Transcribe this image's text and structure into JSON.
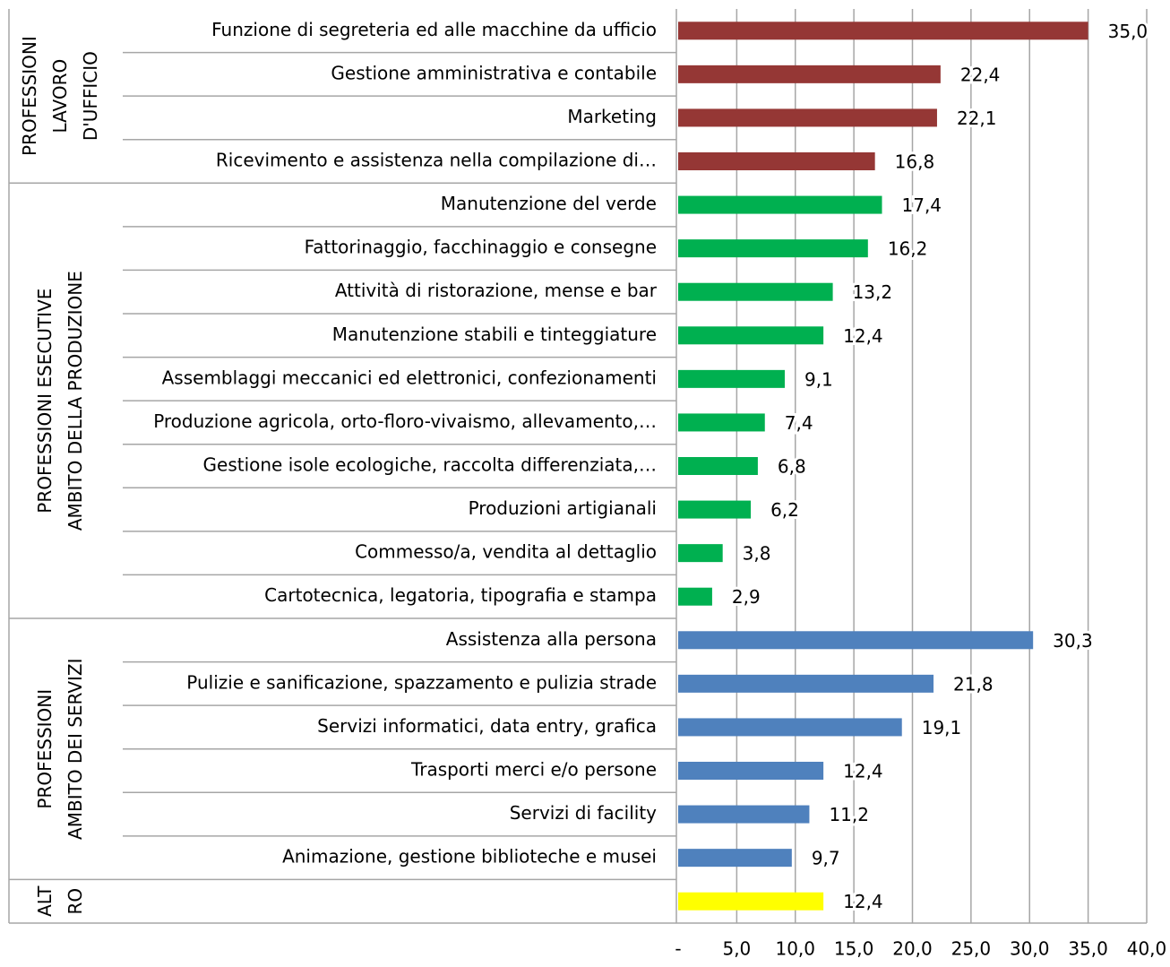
{
  "chart_data": {
    "type": "bar",
    "orientation": "horizontal",
    "xlim": [
      0,
      40
    ],
    "xticks": [
      {
        "value": 0,
        "label": "-"
      },
      {
        "value": 5,
        "label": "5,0"
      },
      {
        "value": 10,
        "label": "10,0"
      },
      {
        "value": 15,
        "label": "15,0"
      },
      {
        "value": 20,
        "label": "20,0"
      },
      {
        "value": 25,
        "label": "25,0"
      },
      {
        "value": 30,
        "label": "30,0"
      },
      {
        "value": 35,
        "label": "35,0"
      },
      {
        "value": 40,
        "label": "40,0"
      }
    ],
    "grid": true,
    "series": [
      {
        "name_lines": [
          "PROFESSIONI",
          "LAVORO",
          "D'UFFICIO"
        ],
        "color": "#953735",
        "categories": [
          "Funzione di segreteria ed alle macchine da ufficio",
          "Gestione amministrativa e contabile",
          "Marketing",
          "Ricevimento e  assistenza nella compilazione di…"
        ],
        "values": [
          35.0,
          22.4,
          22.1,
          16.8
        ],
        "value_labels": [
          "35,0",
          "22,4",
          "22,1",
          "16,8"
        ]
      },
      {
        "name_lines": [
          "PROFESSIONI ESECUTIVE",
          "AMBITO DELLA PRODUZIONE"
        ],
        "color": "#00b050",
        "categories": [
          "Manutenzione del verde",
          "Fattorinaggio, facchinaggio e consegne",
          "Attività di ristorazione, mense e bar",
          "Manutenzione stabili e tinteggiature",
          "Assemblaggi meccanici ed elettronici, confezionamenti",
          "Produzione agricola, orto-floro-vivaismo, allevamento,…",
          "Gestione isole ecologiche, raccolta differenziata,…",
          "Produzioni artigianali",
          "Commesso/a, vendita al dettaglio",
          "Cartotecnica, legatoria, tipografia e stampa"
        ],
        "values": [
          17.4,
          16.2,
          13.2,
          12.4,
          9.1,
          7.4,
          6.8,
          6.2,
          3.8,
          2.9
        ],
        "value_labels": [
          "17,4",
          "16,2",
          "13,2",
          "12,4",
          "9,1",
          "7,4",
          "6,8",
          "6,2",
          "3,8",
          "2,9"
        ]
      },
      {
        "name_lines": [
          "PROFESSIONI",
          "AMBITO DEI SERVIZI"
        ],
        "color": "#4f81bd",
        "categories": [
          "Assistenza alla persona",
          "Pulizie e sanificazione, spazzamento e pulizia strade",
          "Servizi informatici, data entry, grafica",
          "Trasporti merci e/o persone",
          "Servizi di facility",
          "Animazione, gestione biblioteche e musei"
        ],
        "values": [
          30.3,
          21.8,
          19.1,
          12.4,
          11.2,
          9.7
        ],
        "value_labels": [
          "30,3",
          "21,8",
          "19,1",
          "12,4",
          "11,2",
          "9,7"
        ]
      },
      {
        "name_lines": [
          "ALT",
          "RO"
        ],
        "color": "#ffff00",
        "categories": [
          null
        ],
        "values": [
          12.4
        ],
        "value_labels": [
          "12,4"
        ]
      }
    ]
  }
}
